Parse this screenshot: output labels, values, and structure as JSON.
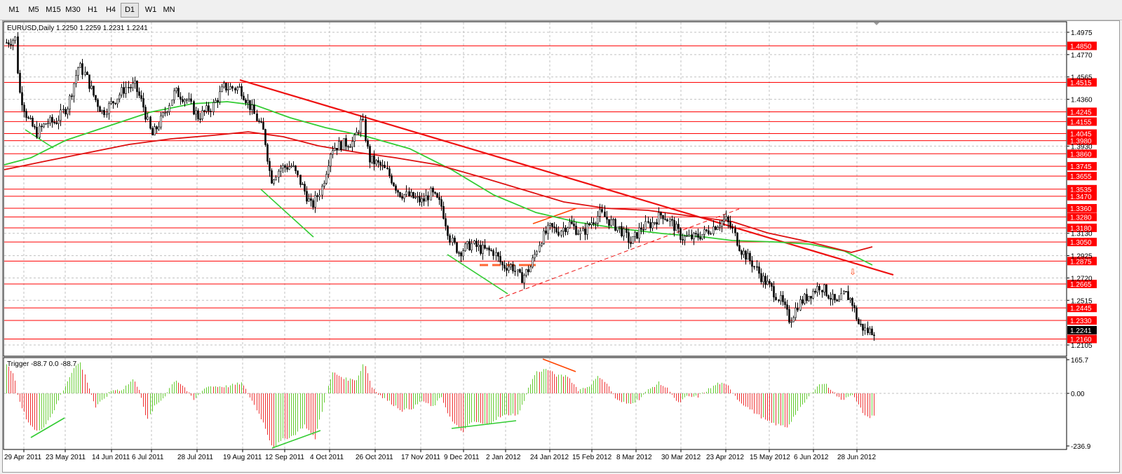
{
  "toolbar": {
    "timeframes": [
      "M1",
      "M5",
      "M15",
      "M30",
      "H1",
      "H4",
      "D1",
      "W1",
      "MN"
    ],
    "active": "D1"
  },
  "chart": {
    "header": "EURUSD,Daily  1.2250 1.2259 1.2231 1.2241",
    "price_axis": [
      "1.4975",
      "1.4770",
      "1.4565",
      "1.4360",
      "1.3930",
      "1.3130",
      "1.2925",
      "1.2720",
      "1.2515",
      "1.2105"
    ],
    "level_labels": [
      "1.4850",
      "1.4515",
      "1.4245",
      "1.4155",
      "1.4045",
      "1.3980",
      "1.3860",
      "1.3745",
      "1.3655",
      "1.3535",
      "1.3470",
      "1.3360",
      "1.3280",
      "1.3180",
      "1.3050",
      "1.2875",
      "1.2665",
      "1.2445",
      "1.2330",
      "1.2160"
    ],
    "current_price": "1.2241",
    "date_axis": [
      "29 Apr 2011",
      "23 May 2011",
      "14 Jun 2011",
      "6 Jul 2011",
      "28 Jul 2011",
      "19 Aug 2011",
      "12 Sep 2011",
      "4 Oct 2011",
      "26 Oct 2011",
      "17 Nov 2011",
      "9 Dec 2011",
      "2 Jan 2012",
      "24 Jan 2012",
      "15 Feb 2012",
      "8 Mar 2012",
      "30 Mar 2012",
      "23 Apr 2012",
      "15 May 2012",
      "6 Jun 2012",
      "28 Jun 2012"
    ]
  },
  "indicator": {
    "header": "Trigger -88.7 0.0 -88.7",
    "axis": [
      "165.7",
      "0.00",
      "-236.9"
    ]
  },
  "colors": {
    "level": "#ff0000",
    "current_bg": "#000000",
    "ma_fast": "#33cc33",
    "ma_slow": "#dd1111",
    "hist_pos": "#66cc33",
    "hist_neg": "#ee3333"
  }
}
